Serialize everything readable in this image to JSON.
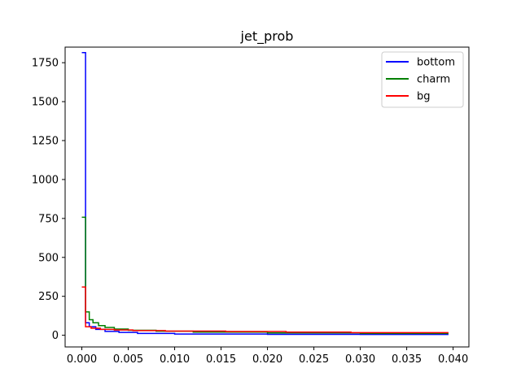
{
  "chart_data": {
    "type": "line",
    "title": "jet_prob",
    "xlabel": "",
    "ylabel": "",
    "xlim": [
      -0.0018,
      0.0417
    ],
    "ylim": [
      -75,
      1850
    ],
    "xticks": [
      0.0,
      0.005,
      0.01,
      0.015,
      0.02,
      0.025,
      0.03,
      0.035,
      0.04
    ],
    "xtick_labels": [
      "0.000",
      "0.005",
      "0.010",
      "0.015",
      "0.020",
      "0.025",
      "0.030",
      "0.035",
      "0.040"
    ],
    "yticks": [
      0,
      250,
      500,
      750,
      1000,
      1250,
      1500,
      1750
    ],
    "ytick_labels": [
      "0",
      "250",
      "500",
      "750",
      "1000",
      "1250",
      "1500",
      "1750"
    ],
    "grid": false,
    "legend_position": "top-right",
    "series": [
      {
        "name": "bottom",
        "color": "#0000ff",
        "style": "step",
        "points": [
          [
            0.0,
            1815
          ],
          [
            0.0004,
            1815
          ],
          [
            0.0004,
            80
          ],
          [
            0.0008,
            80
          ],
          [
            0.0008,
            55
          ],
          [
            0.0015,
            55
          ],
          [
            0.0015,
            38
          ],
          [
            0.0025,
            38
          ],
          [
            0.0025,
            25
          ],
          [
            0.004,
            25
          ],
          [
            0.004,
            18
          ],
          [
            0.006,
            18
          ],
          [
            0.006,
            12
          ],
          [
            0.01,
            12
          ],
          [
            0.01,
            8
          ],
          [
            0.02,
            8
          ],
          [
            0.02,
            6
          ],
          [
            0.03,
            6
          ],
          [
            0.03,
            5
          ],
          [
            0.0395,
            5
          ]
        ]
      },
      {
        "name": "charm",
        "color": "#008000",
        "style": "step",
        "points": [
          [
            0.0,
            758
          ],
          [
            0.0004,
            758
          ],
          [
            0.0004,
            150
          ],
          [
            0.0008,
            150
          ],
          [
            0.0008,
            100
          ],
          [
            0.0012,
            100
          ],
          [
            0.0012,
            80
          ],
          [
            0.0018,
            80
          ],
          [
            0.0018,
            62
          ],
          [
            0.0025,
            62
          ],
          [
            0.0025,
            50
          ],
          [
            0.0035,
            50
          ],
          [
            0.0035,
            40
          ],
          [
            0.005,
            40
          ],
          [
            0.005,
            32
          ],
          [
            0.008,
            32
          ],
          [
            0.008,
            26
          ],
          [
            0.012,
            26
          ],
          [
            0.012,
            20
          ],
          [
            0.02,
            20
          ],
          [
            0.02,
            15
          ],
          [
            0.03,
            15
          ],
          [
            0.03,
            12
          ],
          [
            0.0395,
            12
          ]
        ]
      },
      {
        "name": "bg",
        "color": "#ff0000",
        "style": "step",
        "points": [
          [
            0.0,
            310
          ],
          [
            0.0004,
            310
          ],
          [
            0.0004,
            55
          ],
          [
            0.001,
            55
          ],
          [
            0.001,
            45
          ],
          [
            0.002,
            45
          ],
          [
            0.002,
            38
          ],
          [
            0.0035,
            38
          ],
          [
            0.0035,
            34
          ],
          [
            0.0055,
            34
          ],
          [
            0.0055,
            30
          ],
          [
            0.009,
            30
          ],
          [
            0.009,
            27
          ],
          [
            0.0155,
            27
          ],
          [
            0.0155,
            24
          ],
          [
            0.022,
            24
          ],
          [
            0.022,
            20
          ],
          [
            0.029,
            20
          ],
          [
            0.029,
            17
          ],
          [
            0.0395,
            17
          ]
        ]
      }
    ]
  }
}
